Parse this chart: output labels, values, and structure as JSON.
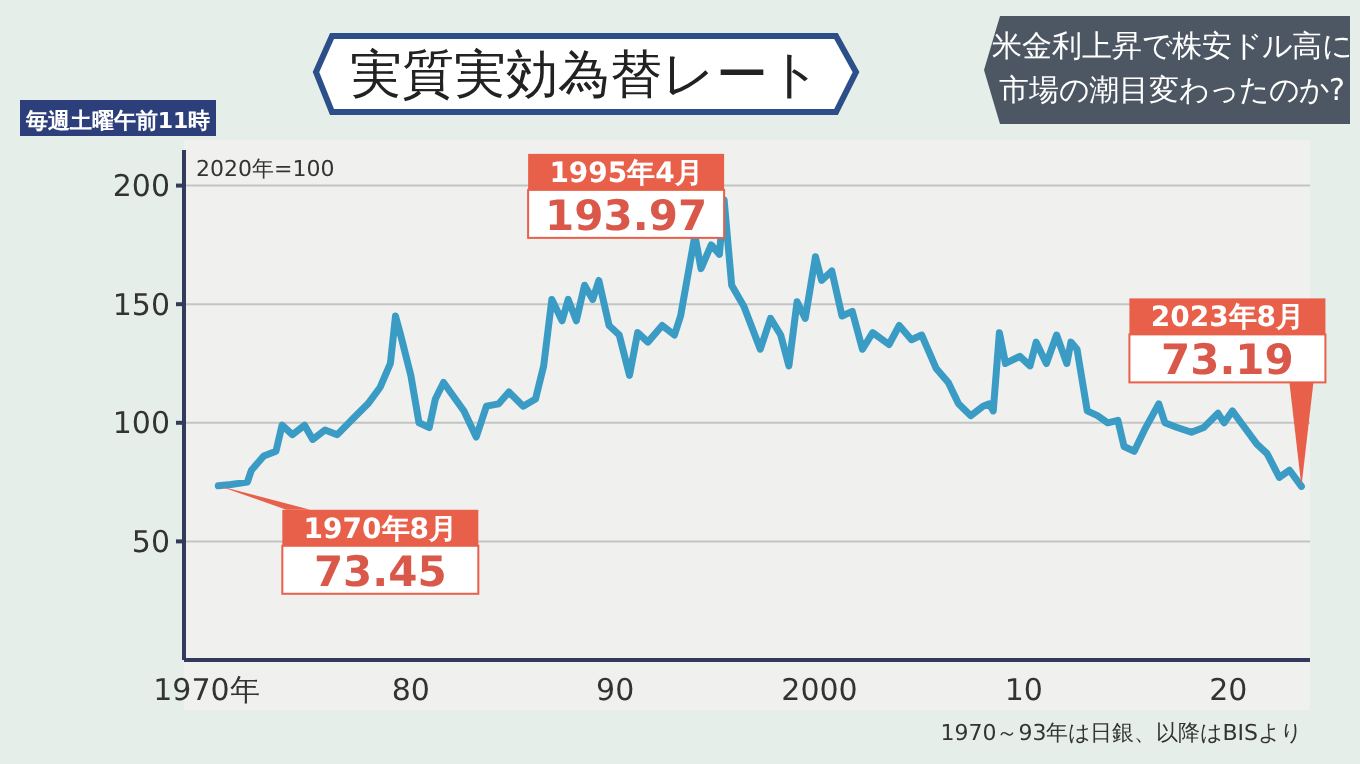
{
  "chart_data": {
    "type": "line",
    "title": "実質実効為替レート",
    "subtitle": "米金利上昇で株安ドル高に市場の潮目変わったのか?",
    "x": [
      1970.58,
      1971.2,
      1972.0,
      1972.2,
      1972.8,
      1973.4,
      1973.7,
      1974.2,
      1974.8,
      1975.2,
      1975.8,
      1976.4,
      1977.2,
      1977.9,
      1978.5,
      1979.0,
      1979.25,
      1979.5,
      1980.0,
      1980.4,
      1980.9,
      1981.2,
      1981.6,
      1982.1,
      1982.6,
      1983.2,
      1983.7,
      1984.3,
      1984.8,
      1985.5,
      1986.1,
      1986.5,
      1986.9,
      1987.4,
      1987.7,
      1988.1,
      1988.5,
      1988.9,
      1989.2,
      1989.7,
      1990.2,
      1990.7,
      1991.1,
      1991.6,
      1992.3,
      1992.9,
      1993.2,
      1993.9,
      1994.2,
      1994.7,
      1995.1,
      1995.33,
      1995.7,
      1996.3,
      1997.1,
      1997.6,
      1998.1,
      1998.5,
      1998.9,
      1999.3,
      1999.8,
      2000.1,
      2000.6,
      2001.1,
      2001.6,
      2002.1,
      2002.6,
      2003.4,
      2003.9,
      2004.5,
      2005.0,
      2005.7,
      2006.3,
      2006.8,
      2007.4,
      2008.0,
      2008.3,
      2008.5,
      2008.8,
      2009.1,
      2009.8,
      2010.3,
      2010.6,
      2011.1,
      2011.6,
      2012.1,
      2012.3,
      2012.6,
      2013.1,
      2013.6,
      2014.1,
      2014.6,
      2014.9,
      2015.4,
      2015.9,
      2016.6,
      2016.9,
      2017.5,
      2018.2,
      2018.8,
      2019.5,
      2019.8,
      2020.2,
      2020.8,
      2021.4,
      2021.9,
      2022.5,
      2023.0,
      2023.58
    ],
    "series": [
      {
        "color": "#3a9cc4",
        "values": [
          73.45,
          74,
          75,
          80,
          86,
          88,
          99,
          95,
          99,
          93,
          97,
          95,
          102,
          108,
          115,
          125,
          145,
          137,
          120,
          100,
          98,
          110,
          117,
          111,
          105,
          94,
          107,
          108,
          113,
          107,
          110,
          124,
          152,
          143,
          152,
          143,
          158,
          152,
          160,
          141,
          137,
          120,
          138,
          134,
          141,
          137,
          145,
          179,
          165,
          175,
          171,
          193.97,
          158,
          149,
          131,
          144,
          137,
          124,
          151,
          144,
          170,
          160,
          164,
          145,
          147,
          131,
          138,
          133,
          141,
          135,
          137,
          123,
          117,
          108,
          103,
          107,
          108,
          105,
          138,
          125,
          128,
          124,
          134,
          125,
          137,
          125,
          134,
          131,
          105,
          103,
          100,
          101,
          90,
          88,
          97,
          108,
          100,
          98,
          96,
          98,
          104,
          100,
          105,
          98,
          91,
          87,
          77,
          80,
          73.19
        ]
      }
    ],
    "xlim": [
      1968.9,
      2024
    ],
    "xticks": [
      {
        "value": 1970,
        "label": "1970年"
      },
      {
        "value": 1980,
        "label": "80"
      },
      {
        "value": 1990,
        "label": "90"
      },
      2000,
      {
        "value": 2010,
        "label": "10"
      },
      {
        "value": 2020,
        "label": "20"
      }
    ],
    "ylim": [
      0,
      215
    ],
    "yticks": [
      50,
      100,
      150,
      200
    ],
    "grid": "y",
    "annotations": [
      "1970年8月",
      {
        "text": "73.45",
        "x": 1970.58,
        "y": 73.45
      },
      "1995年4月",
      {
        "text": "193.97",
        "x": 1995.33,
        "y": 193.97
      },
      "2023年8月",
      {
        "text": "73.19",
        "x": 2023.58,
        "y": 73.19
      },
      "2020年=100",
      "1970～93年は日銀、以降はBISより",
      "毎週土曜午前11時"
    ]
  }
}
